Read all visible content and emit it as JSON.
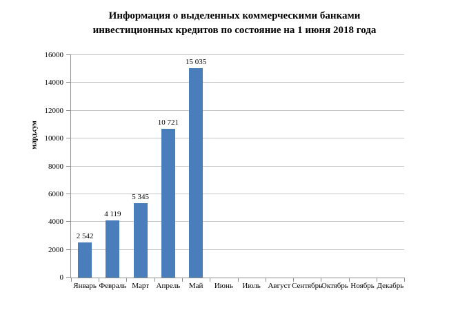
{
  "chart_data": {
    "type": "bar",
    "title": "Информация о выделенных коммерческими банками инвестиционных кредитов по состояние на 1 июня 2018 года",
    "title_lines": [
      "Информация о выделенных коммерческими банками",
      "инвестиционных кредитов по состояние на 1 июня 2018 года"
    ],
    "ylabel": "млрд.сум",
    "xlabel": "",
    "categories": [
      "Январь",
      "Февраль",
      "Март",
      "Апрель",
      "Май",
      "Июнь",
      "Июль",
      "Август",
      "Сентябрь",
      "Октябрь",
      "Ноябрь",
      "Декабрь"
    ],
    "values": [
      2542,
      4119,
      5345,
      10721,
      15035,
      null,
      null,
      null,
      null,
      null,
      null,
      null
    ],
    "value_labels": [
      "2 542",
      "4 119",
      "5 345",
      "10 721",
      "15 035",
      null,
      null,
      null,
      null,
      null,
      null,
      null
    ],
    "ylim": [
      0,
      16000
    ],
    "ytick_step": 2000,
    "yticks": [
      0,
      2000,
      4000,
      6000,
      8000,
      10000,
      12000,
      14000,
      16000
    ],
    "grid": true,
    "legend": "none",
    "colors": {
      "bar": "#4A7EBB",
      "gridline": "#C4C4C4",
      "axis": "#8E8E8E",
      "text": "#000000"
    }
  }
}
